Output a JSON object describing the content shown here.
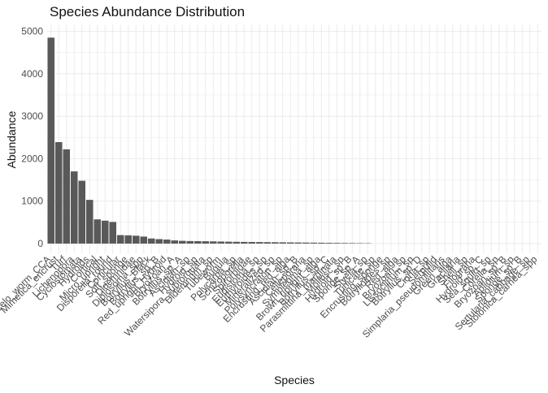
{
  "chart_data": {
    "type": "bar",
    "title": "Species Abundance Distribution",
    "xlabel": "Species",
    "ylabel": "Abundance",
    "ylim": [
      0,
      5200
    ],
    "yticks": [
      0,
      1000,
      2000,
      3000,
      4000,
      5000
    ],
    "grid": true,
    "bar_color": "#595959",
    "grid_color": "#ebebeb",
    "categories": [
      "Celo_worm_CCA",
      "Mimetica_encrust",
      "Turf",
      "Lichenopora",
      "Cyclostomata",
      "Hydroids",
      "Cortical",
      "Micro_upright",
      "Disporella_round",
      "Corticular",
      "Soft_sponge",
      "Didemnidae",
      "Diplosoma_spp",
      "Botryllus_Black",
      "Botryllus_sp_B",
      "Red_upright_Hydroid",
      "Bryozoan_A",
      "Botryllus_sp_A",
      "Ascidian_sp",
      "Hydroid_sp",
      "Watersipora_subtorquata",
      "Didemnum_sp",
      "Tubeworm",
      "Bugula",
      "Polycarpa_sp",
      "Schizoporella",
      "Spirorbidae",
      "Eudistoma_sp",
      "Euthyroides_sp",
      "Mineralized_sp",
      "Polysyncraton_sp",
      "Encrusting_red_alga",
      "Ascidian_sp_B",
      "Celleporaria",
      "Symplegma_sp",
      "Brown_upright_alga",
      "Botryllus_sp_C",
      "Parasmittina_marginata",
      "Mollusc_sp",
      "Hydroid_sp_B",
      "Sponge_sp_A",
      "Styela_sp",
      "Tunicate_sp",
      "Encrusting_sponge",
      "Botrylloides_sp",
      "Red_alga",
      "Bryozoan_sp",
      "Lissoclinum_sp",
      "Botryllus_sp_D",
      "Ciona_sp",
      "Serpulid",
      "Simplaria_pseudomilitaris",
      "Green_alga",
      "Gracilaria",
      "Shell_sp",
      "Filograna",
      "Hydroid_sp_C",
      "Sea_squirt_sp",
      "Corella_sp",
      "Bryozoan_sp_B",
      "Aplidium_sp",
      "Sponge_sp_B",
      "Sertularia_cabbage_sp",
      "Stolonica_carnea_spp"
    ],
    "values": [
      4850,
      2390,
      2220,
      1700,
      1480,
      1030,
      570,
      540,
      510,
      200,
      195,
      185,
      165,
      120,
      105,
      95,
      75,
      65,
      60,
      58,
      55,
      52,
      48,
      45,
      42,
      40,
      38,
      36,
      34,
      32,
      30,
      28,
      26,
      24,
      22,
      20,
      18,
      16,
      14,
      12,
      10,
      8,
      0,
      0,
      0,
      0,
      0,
      0,
      0,
      0,
      0,
      0,
      0,
      0,
      0,
      0,
      0,
      0,
      0,
      0,
      0,
      0,
      0,
      0
    ]
  }
}
